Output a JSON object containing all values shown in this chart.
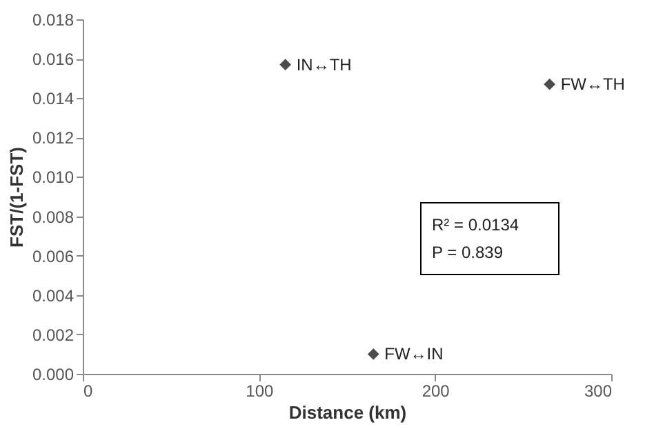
{
  "chart_data": {
    "type": "scatter",
    "xlabel": "Distance (km)",
    "ylabel": "FST/(1-FST)",
    "x": [
      115,
      265,
      165
    ],
    "values": [
      0.0157,
      0.0147,
      0.001
    ],
    "color": "#000000",
    "marker": "diamond",
    "xlim": [
      0,
      300
    ],
    "xticks": [
      0,
      100,
      200,
      300
    ],
    "ylim": [
      0,
      0.018
    ],
    "yticks": [
      {
        "value": 0,
        "label": "0.000"
      },
      {
        "value": 0.002,
        "label": "0.002"
      },
      {
        "value": 0.004,
        "label": "0.004"
      },
      {
        "value": 0.006,
        "label": "0.006"
      },
      {
        "value": 0.008,
        "label": "0.008"
      },
      {
        "value": 0.01,
        "label": "0.010"
      },
      {
        "value": 0.012,
        "label": "0.012"
      },
      {
        "value": 0.014,
        "label": "0.014"
      },
      {
        "value": 0.016,
        "label": "0.016"
      },
      {
        "value": 0.018,
        "label": "0.018"
      }
    ],
    "grid": false,
    "annotations": [
      {
        "text": "IN↔TH",
        "x": 115,
        "y": 0.0157
      },
      {
        "text": "FW↔TH",
        "x": 265,
        "y": 0.0147
      },
      {
        "text": "FW↔IN",
        "x": 165,
        "y": 0.001
      },
      "R² = 0.0134",
      "P = 0.839"
    ]
  }
}
